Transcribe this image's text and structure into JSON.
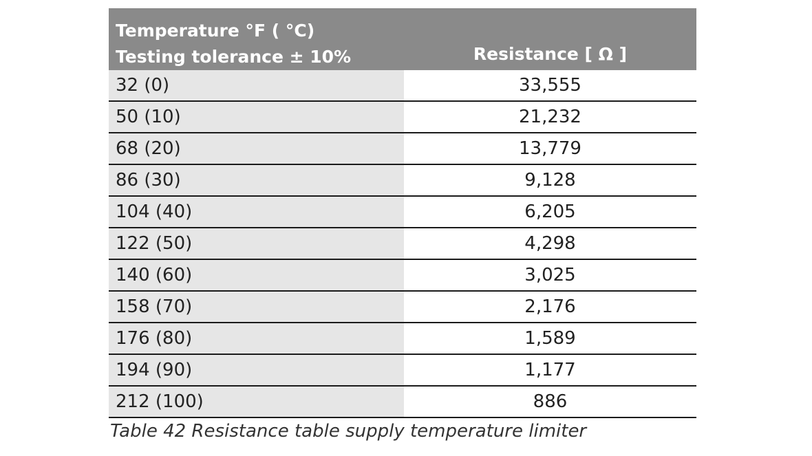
{
  "table": {
    "header": {
      "temperature_line1": "Temperature  °F ( °C)",
      "temperature_line2": "Testing tolerance ± 10%",
      "resistance": "Resistance [ Ω ]"
    },
    "rows": [
      {
        "temperature": "32 (0)",
        "resistance": "33,555"
      },
      {
        "temperature": "50 (10)",
        "resistance": "21,232"
      },
      {
        "temperature": "68 (20)",
        "resistance": "13,779"
      },
      {
        "temperature": "86 (30)",
        "resistance": "9,128"
      },
      {
        "temperature": "104 (40)",
        "resistance": "6,205"
      },
      {
        "temperature": "122 (50)",
        "resistance": "4,298"
      },
      {
        "temperature": "140 (60)",
        "resistance": "3,025"
      },
      {
        "temperature": "158 (70)",
        "resistance": "2,176"
      },
      {
        "temperature": "176 (80)",
        "resistance": "1,589"
      },
      {
        "temperature": "194 (90)",
        "resistance": "1,177"
      },
      {
        "temperature": "212 (100)",
        "resistance": "886"
      }
    ]
  },
  "caption": "Table 42  Resistance table supply temperature limiter",
  "colors": {
    "header_background": "#8a8a8a",
    "first_column_background": "#e6e6e6"
  }
}
